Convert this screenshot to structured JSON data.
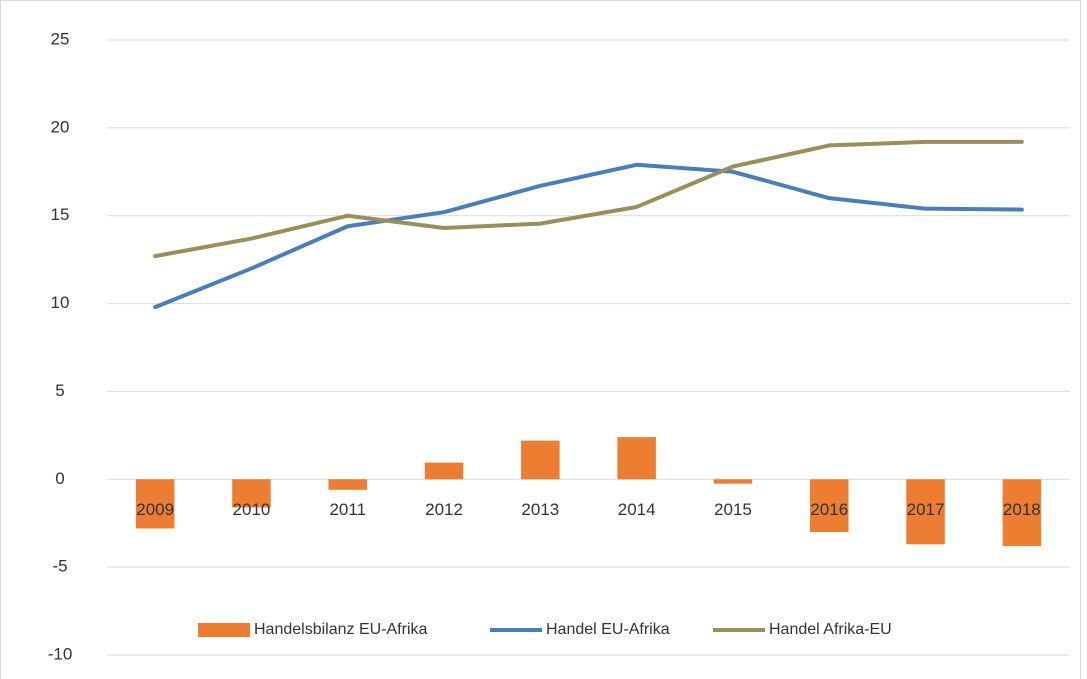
{
  "chart_data": {
    "type": "combo",
    "categories": [
      "2009",
      "2010",
      "2011",
      "2012",
      "2013",
      "2014",
      "2015",
      "2016",
      "2017",
      "2018"
    ],
    "series": [
      {
        "name": "Handelsbilanz EU-Afrika",
        "type": "bar",
        "color": "#ed7d31",
        "values": [
          -2.8,
          -1.6,
          -0.6,
          0.95,
          2.2,
          2.4,
          -0.25,
          -3.0,
          -3.7,
          -3.8
        ]
      },
      {
        "name": "Handel EU-Afrika",
        "type": "line",
        "color": "#4a7ebb",
        "values": [
          9.8,
          12.0,
          14.4,
          15.2,
          16.7,
          17.9,
          17.5,
          16.0,
          15.4,
          15.35
        ]
      },
      {
        "name": "Handel Afrika-EU",
        "type": "line",
        "color": "#998f5a",
        "values": [
          12.7,
          13.7,
          15.0,
          14.3,
          14.55,
          15.5,
          17.8,
          19.0,
          19.2,
          19.2
        ]
      }
    ],
    "ylim": [
      -10,
      25
    ],
    "yticks": [
      -10,
      -5,
      0,
      5,
      10,
      15,
      20,
      25
    ],
    "grid": true,
    "legend": "bottom"
  }
}
